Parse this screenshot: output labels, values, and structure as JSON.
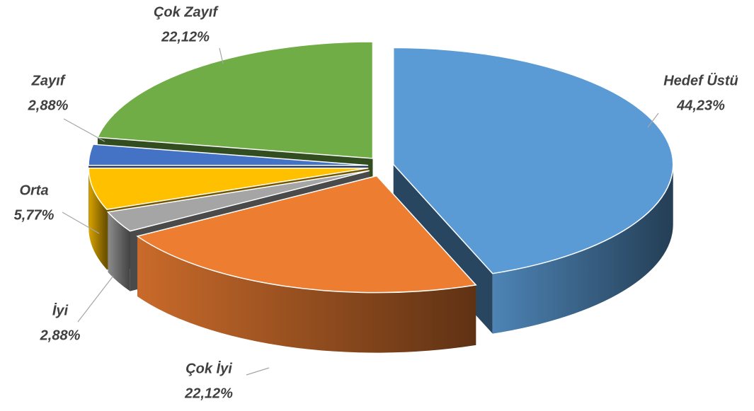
{
  "chart_data": {
    "type": "pie3d",
    "categories": [
      "Hedef Üstü",
      "Çok İyi",
      "İyi",
      "Orta",
      "Zayıf",
      "Çok Zayıf"
    ],
    "values": [
      44.23,
      22.12,
      2.88,
      5.77,
      2.88,
      22.12
    ],
    "value_labels": [
      "44,23%",
      "22,12%",
      "2,88%",
      "5,77%",
      "2,88%",
      "22,12%"
    ],
    "colors": [
      "#5b9bd5",
      "#ed7d31",
      "#a5a5a5",
      "#ffc000",
      "#4472c4",
      "#70ad47"
    ]
  }
}
